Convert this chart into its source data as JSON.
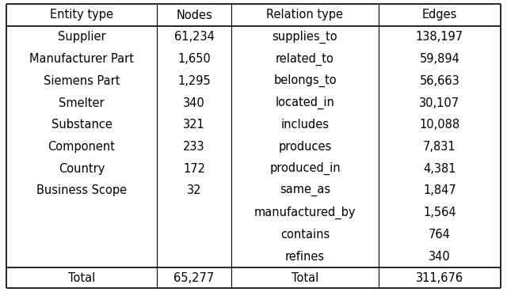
{
  "entity_types": [
    "Supplier",
    "Manufacturer Part",
    "Siemens Part",
    "Smelter",
    "Substance",
    "Component",
    "Country",
    "Business Scope"
  ],
  "nodes": [
    "61,234",
    "1,650",
    "1,295",
    "340",
    "321",
    "233",
    "172",
    "32"
  ],
  "relation_types": [
    "supplies_to",
    "related_to",
    "belongs_to",
    "located_in",
    "includes",
    "produces",
    "produced_in",
    "same_as",
    "manufactured_by",
    "contains",
    "refines"
  ],
  "edges": [
    "138,197",
    "59,894",
    "56,663",
    "30,107",
    "10,088",
    "7,831",
    "4,381",
    "1,847",
    "1,564",
    "764",
    "340"
  ],
  "entity_total": "65,277",
  "edge_total": "311,676",
  "col_headers": [
    "Entity type",
    "Nodes",
    "Relation type",
    "Edges"
  ],
  "bg_color": "#ffffff",
  "text_color": "#000000",
  "font_size": 10.5
}
